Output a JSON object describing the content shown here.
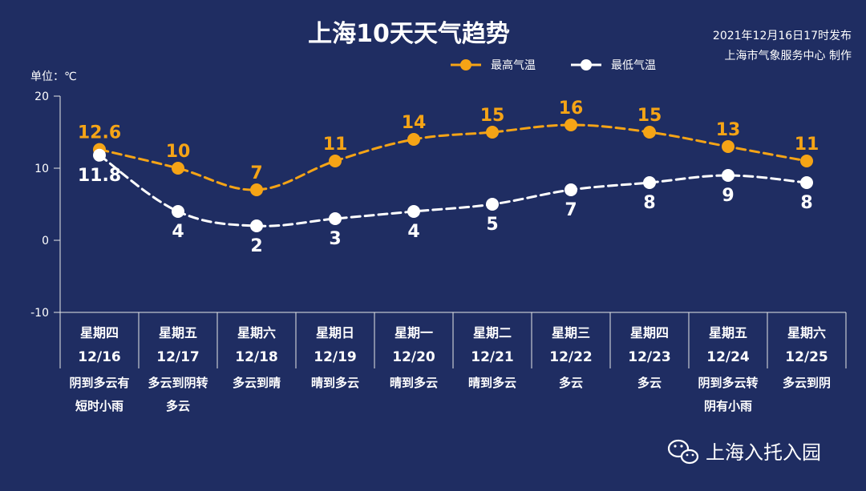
{
  "chart_data": {
    "type": "line",
    "title": "上海10天天气趋势",
    "published": "2021年12月16日17时发布",
    "producer": "上海市气象服务中心 制作",
    "unit_label": "单位：℃",
    "ylim": [
      -10,
      20
    ],
    "yticks": [
      "20",
      "10",
      "0",
      "-10"
    ],
    "legend_position": "top-right",
    "weekdays": [
      "星期四",
      "星期五",
      "星期六",
      "星期日",
      "星期一",
      "星期二",
      "星期三",
      "星期四",
      "星期五",
      "星期六"
    ],
    "categories": [
      "12/16",
      "12/17",
      "12/18",
      "12/19",
      "12/20",
      "12/21",
      "12/22",
      "12/23",
      "12/24",
      "12/25"
    ],
    "weather": [
      [
        "阴到多云有",
        "短时小雨"
      ],
      [
        "多云到阴转",
        "多云"
      ],
      [
        "多云到晴"
      ],
      [
        "晴到多云"
      ],
      [
        "晴到多云"
      ],
      [
        "晴到多云"
      ],
      [
        "多云"
      ],
      [
        "多云"
      ],
      [
        "阴到多云转",
        "阴有小雨"
      ],
      [
        "多云到阴"
      ]
    ],
    "series": [
      {
        "name": "最高气温",
        "color": "#f5a416",
        "values": [
          12.6,
          10,
          7,
          11,
          14,
          15,
          16,
          15,
          13,
          11
        ],
        "labels": [
          "12.6",
          "10",
          "7",
          "11",
          "14",
          "15",
          "16",
          "15",
          "13",
          "11"
        ]
      },
      {
        "name": "最低气温",
        "color": "#ffffff",
        "values": [
          11.8,
          4,
          2,
          3,
          4,
          5,
          7,
          8,
          9,
          8
        ],
        "labels": [
          "11.8",
          "4",
          "2",
          "3",
          "4",
          "5",
          "7",
          "8",
          "9",
          "8"
        ]
      }
    ]
  },
  "watermark": {
    "icon": "wechat-icon",
    "text": "上海入托入园"
  }
}
